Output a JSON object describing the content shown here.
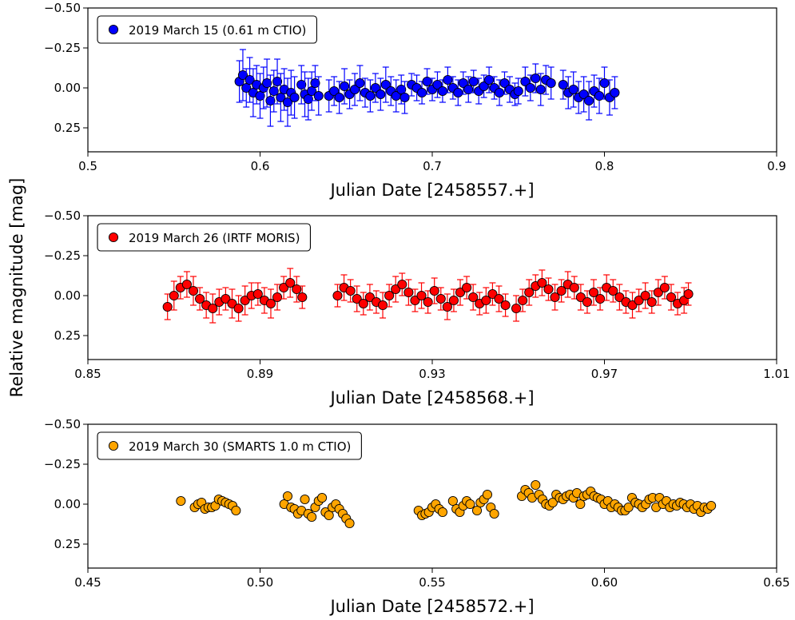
{
  "figure": {
    "ylabel": "Relative magnitude [mag]"
  },
  "chart_data": [
    {
      "type": "scatter",
      "legend": "2019 March 15 (0.61 m CTIO)",
      "legend_position": "top-left",
      "color": "#0000ff",
      "errorbar_color": "#0000ff",
      "xlabel": "Julian Date [2458557.+]",
      "ylabel": "",
      "xlim": [
        0.5,
        0.9
      ],
      "ylim": [
        0.4,
        -0.5
      ],
      "y_inverted": true,
      "xticks": [
        "0.5",
        "0.6",
        "0.7",
        "0.8",
        "0.9"
      ],
      "yticks": [
        "−0.50",
        "−0.25",
        "0.00",
        "0.25"
      ],
      "x": [
        0.588,
        0.59,
        0.592,
        0.594,
        0.596,
        0.598,
        0.6,
        0.602,
        0.604,
        0.606,
        0.608,
        0.61,
        0.612,
        0.614,
        0.616,
        0.618,
        0.62,
        0.624,
        0.626,
        0.628,
        0.63,
        0.632,
        0.634,
        0.64,
        0.643,
        0.646,
        0.649,
        0.652,
        0.655,
        0.658,
        0.661,
        0.664,
        0.667,
        0.67,
        0.673,
        0.676,
        0.679,
        0.682,
        0.684,
        0.688,
        0.691,
        0.694,
        0.697,
        0.7,
        0.703,
        0.706,
        0.709,
        0.712,
        0.715,
        0.718,
        0.721,
        0.724,
        0.727,
        0.73,
        0.733,
        0.736,
        0.739,
        0.742,
        0.745,
        0.748,
        0.75,
        0.754,
        0.757,
        0.76,
        0.763,
        0.766,
        0.769,
        0.776,
        0.779,
        0.782,
        0.785,
        0.788,
        0.791,
        0.794,
        0.797,
        0.8,
        0.803,
        0.806
      ],
      "y": [
        -0.04,
        -0.08,
        0.0,
        -0.05,
        0.03,
        -0.02,
        0.05,
        0.0,
        -0.03,
        0.08,
        0.02,
        -0.04,
        0.06,
        0.01,
        0.09,
        0.03,
        0.06,
        -0.02,
        0.04,
        0.07,
        0.02,
        -0.03,
        0.05,
        0.05,
        0.02,
        0.06,
        -0.01,
        0.04,
        0.01,
        -0.03,
        0.03,
        0.05,
        0.0,
        0.04,
        -0.02,
        0.02,
        0.05,
        0.01,
        0.06,
        -0.02,
        0.0,
        0.03,
        -0.04,
        0.01,
        -0.02,
        0.02,
        -0.05,
        0.0,
        0.03,
        -0.03,
        0.01,
        -0.04,
        0.02,
        -0.01,
        -0.05,
        0.0,
        0.03,
        -0.03,
        0.01,
        0.04,
        0.02,
        -0.04,
        0.0,
        -0.06,
        0.01,
        -0.05,
        -0.03,
        -0.02,
        0.03,
        0.01,
        0.06,
        0.04,
        0.08,
        0.02,
        0.05,
        -0.03,
        0.06,
        0.03
      ],
      "yerr": [
        0.13,
        0.16,
        0.12,
        0.14,
        0.15,
        0.12,
        0.14,
        0.13,
        0.15,
        0.16,
        0.13,
        0.14,
        0.15,
        0.13,
        0.15,
        0.14,
        0.13,
        0.12,
        0.14,
        0.13,
        0.12,
        0.11,
        0.12,
        0.1,
        0.09,
        0.1,
        0.11,
        0.09,
        0.1,
        0.11,
        0.09,
        0.1,
        0.09,
        0.1,
        0.11,
        0.09,
        0.1,
        0.09,
        0.1,
        0.07,
        0.08,
        0.07,
        0.08,
        0.07,
        0.08,
        0.07,
        0.08,
        0.07,
        0.08,
        0.07,
        0.08,
        0.07,
        0.08,
        0.07,
        0.08,
        0.07,
        0.08,
        0.07,
        0.08,
        0.07,
        0.08,
        0.09,
        0.08,
        0.09,
        0.1,
        0.09,
        0.1,
        0.09,
        0.1,
        0.11,
        0.1,
        0.11,
        0.12,
        0.1,
        0.11,
        0.1,
        0.11,
        0.1
      ]
    },
    {
      "type": "scatter",
      "legend": "2019 March 26 (IRTF MORIS)",
      "legend_position": "top-left",
      "color": "#ff0000",
      "errorbar_color": "#ff0000",
      "xlabel": "Julian Date [2458568.+]",
      "ylabel": "",
      "xlim": [
        0.85,
        1.01
      ],
      "ylim": [
        0.4,
        -0.5
      ],
      "y_inverted": true,
      "xticks": [
        "0.85",
        "0.89",
        "0.93",
        "0.97",
        "1.01"
      ],
      "yticks": [
        "−0.50",
        "−0.25",
        "0.00",
        "0.25"
      ],
      "x": [
        0.8685,
        0.87,
        0.8715,
        0.873,
        0.8745,
        0.876,
        0.8775,
        0.879,
        0.8805,
        0.882,
        0.8835,
        0.885,
        0.8865,
        0.888,
        0.8895,
        0.891,
        0.8925,
        0.894,
        0.8955,
        0.897,
        0.8985,
        0.8998,
        0.908,
        0.9095,
        0.911,
        0.9125,
        0.914,
        0.9155,
        0.917,
        0.9185,
        0.92,
        0.9215,
        0.923,
        0.9245,
        0.926,
        0.9275,
        0.929,
        0.9305,
        0.932,
        0.9335,
        0.935,
        0.9365,
        0.938,
        0.9395,
        0.941,
        0.9425,
        0.944,
        0.9455,
        0.947,
        0.9495,
        0.951,
        0.9525,
        0.954,
        0.9555,
        0.957,
        0.9585,
        0.96,
        0.9615,
        0.963,
        0.9645,
        0.966,
        0.9675,
        0.969,
        0.9705,
        0.972,
        0.9735,
        0.975,
        0.9765,
        0.978,
        0.9795,
        0.981,
        0.9825,
        0.984,
        0.9855,
        0.987,
        0.9885,
        0.9895
      ],
      "y": [
        0.07,
        0.0,
        -0.05,
        -0.07,
        -0.03,
        0.02,
        0.06,
        0.08,
        0.04,
        0.02,
        0.05,
        0.08,
        0.03,
        0.0,
        -0.01,
        0.03,
        0.05,
        0.01,
        -0.05,
        -0.08,
        -0.04,
        0.01,
        0.0,
        -0.05,
        -0.03,
        0.02,
        0.05,
        0.01,
        0.04,
        0.06,
        0.0,
        -0.04,
        -0.07,
        -0.02,
        0.03,
        0.0,
        0.04,
        -0.03,
        0.02,
        0.07,
        0.03,
        -0.02,
        -0.05,
        0.01,
        0.05,
        0.03,
        -0.01,
        0.02,
        0.06,
        0.08,
        0.03,
        -0.02,
        -0.06,
        -0.08,
        -0.04,
        0.01,
        -0.03,
        -0.07,
        -0.05,
        0.01,
        0.04,
        -0.02,
        0.02,
        -0.05,
        -0.03,
        0.01,
        0.04,
        0.06,
        0.03,
        0.0,
        0.04,
        -0.02,
        -0.05,
        0.01,
        0.05,
        0.03,
        -0.01
      ],
      "yerr": [
        0.08,
        0.09,
        0.07,
        0.08,
        0.09,
        0.07,
        0.08,
        0.09,
        0.08,
        0.07,
        0.09,
        0.08,
        0.09,
        0.08,
        0.07,
        0.08,
        0.09,
        0.08,
        0.07,
        0.09,
        0.08,
        0.07,
        0.07,
        0.08,
        0.07,
        0.08,
        0.07,
        0.08,
        0.07,
        0.08,
        0.07,
        0.08,
        0.07,
        0.08,
        0.07,
        0.08,
        0.07,
        0.08,
        0.07,
        0.08,
        0.07,
        0.08,
        0.07,
        0.08,
        0.07,
        0.08,
        0.07,
        0.08,
        0.07,
        0.08,
        0.07,
        0.08,
        0.07,
        0.08,
        0.07,
        0.08,
        0.07,
        0.08,
        0.07,
        0.08,
        0.07,
        0.08,
        0.07,
        0.08,
        0.07,
        0.08,
        0.07,
        0.08,
        0.07,
        0.08,
        0.07,
        0.08,
        0.07,
        0.08,
        0.07,
        0.08,
        0.07
      ]
    },
    {
      "type": "scatter",
      "legend": "2019 March 30 (SMARTS 1.0 m CTIO)",
      "legend_position": "top-left",
      "color": "#ffa500",
      "xlabel": "Julian Date [2458572.+]",
      "ylabel": "",
      "xlim": [
        0.45,
        0.65
      ],
      "ylim": [
        0.4,
        -0.5
      ],
      "y_inverted": true,
      "xticks": [
        "0.45",
        "0.50",
        "0.55",
        "0.60",
        "0.65"
      ],
      "yticks": [
        "−0.50",
        "−0.25",
        "0.00",
        "0.25"
      ],
      "x": [
        0.477,
        0.481,
        0.482,
        0.483,
        0.484,
        0.485,
        0.486,
        0.487,
        0.488,
        0.489,
        0.49,
        0.491,
        0.492,
        0.493,
        0.507,
        0.508,
        0.509,
        0.51,
        0.511,
        0.512,
        0.513,
        0.514,
        0.515,
        0.516,
        0.517,
        0.518,
        0.519,
        0.52,
        0.521,
        0.522,
        0.523,
        0.524,
        0.525,
        0.526,
        0.546,
        0.547,
        0.548,
        0.549,
        0.55,
        0.551,
        0.552,
        0.553,
        0.556,
        0.557,
        0.558,
        0.559,
        0.56,
        0.561,
        0.563,
        0.564,
        0.565,
        0.566,
        0.567,
        0.568,
        0.576,
        0.577,
        0.578,
        0.579,
        0.58,
        0.581,
        0.582,
        0.583,
        0.584,
        0.585,
        0.586,
        0.587,
        0.588,
        0.589,
        0.59,
        0.591,
        0.592,
        0.593,
        0.594,
        0.595,
        0.596,
        0.597,
        0.598,
        0.599,
        0.6,
        0.601,
        0.602,
        0.603,
        0.604,
        0.605,
        0.606,
        0.607,
        0.608,
        0.609,
        0.61,
        0.611,
        0.612,
        0.613,
        0.614,
        0.615,
        0.616,
        0.617,
        0.618,
        0.619,
        0.62,
        0.621,
        0.622,
        0.623,
        0.624,
        0.625,
        0.626,
        0.627,
        0.628,
        0.629,
        0.63,
        0.631
      ],
      "y": [
        -0.02,
        0.02,
        0.0,
        -0.01,
        0.03,
        0.02,
        0.02,
        0.01,
        -0.03,
        -0.02,
        -0.01,
        0.0,
        0.01,
        0.04,
        0.0,
        -0.05,
        0.02,
        0.03,
        0.06,
        0.04,
        -0.03,
        0.06,
        0.08,
        0.02,
        -0.02,
        -0.04,
        0.05,
        0.07,
        0.02,
        0.0,
        0.03,
        0.06,
        0.09,
        0.12,
        0.04,
        0.07,
        0.06,
        0.05,
        0.02,
        0.0,
        0.03,
        0.05,
        -0.02,
        0.03,
        0.05,
        0.01,
        -0.02,
        0.0,
        0.04,
        -0.01,
        -0.03,
        -0.06,
        0.02,
        0.06,
        -0.05,
        -0.09,
        -0.07,
        -0.04,
        -0.12,
        -0.06,
        -0.03,
        0.0,
        0.01,
        -0.01,
        -0.06,
        -0.04,
        -0.03,
        -0.05,
        -0.06,
        -0.04,
        -0.07,
        0.0,
        -0.05,
        -0.06,
        -0.08,
        -0.05,
        -0.04,
        -0.03,
        0.0,
        -0.02,
        0.02,
        0.0,
        0.02,
        0.04,
        0.04,
        0.02,
        -0.04,
        -0.01,
        0.0,
        0.02,
        0.0,
        -0.03,
        -0.04,
        0.02,
        -0.04,
        0.0,
        -0.02,
        0.02,
        0.0,
        0.01,
        -0.01,
        0.0,
        0.02,
        0.0,
        0.03,
        0.01,
        0.05,
        0.02,
        0.03,
        0.01
      ],
      "yerr": []
    }
  ]
}
